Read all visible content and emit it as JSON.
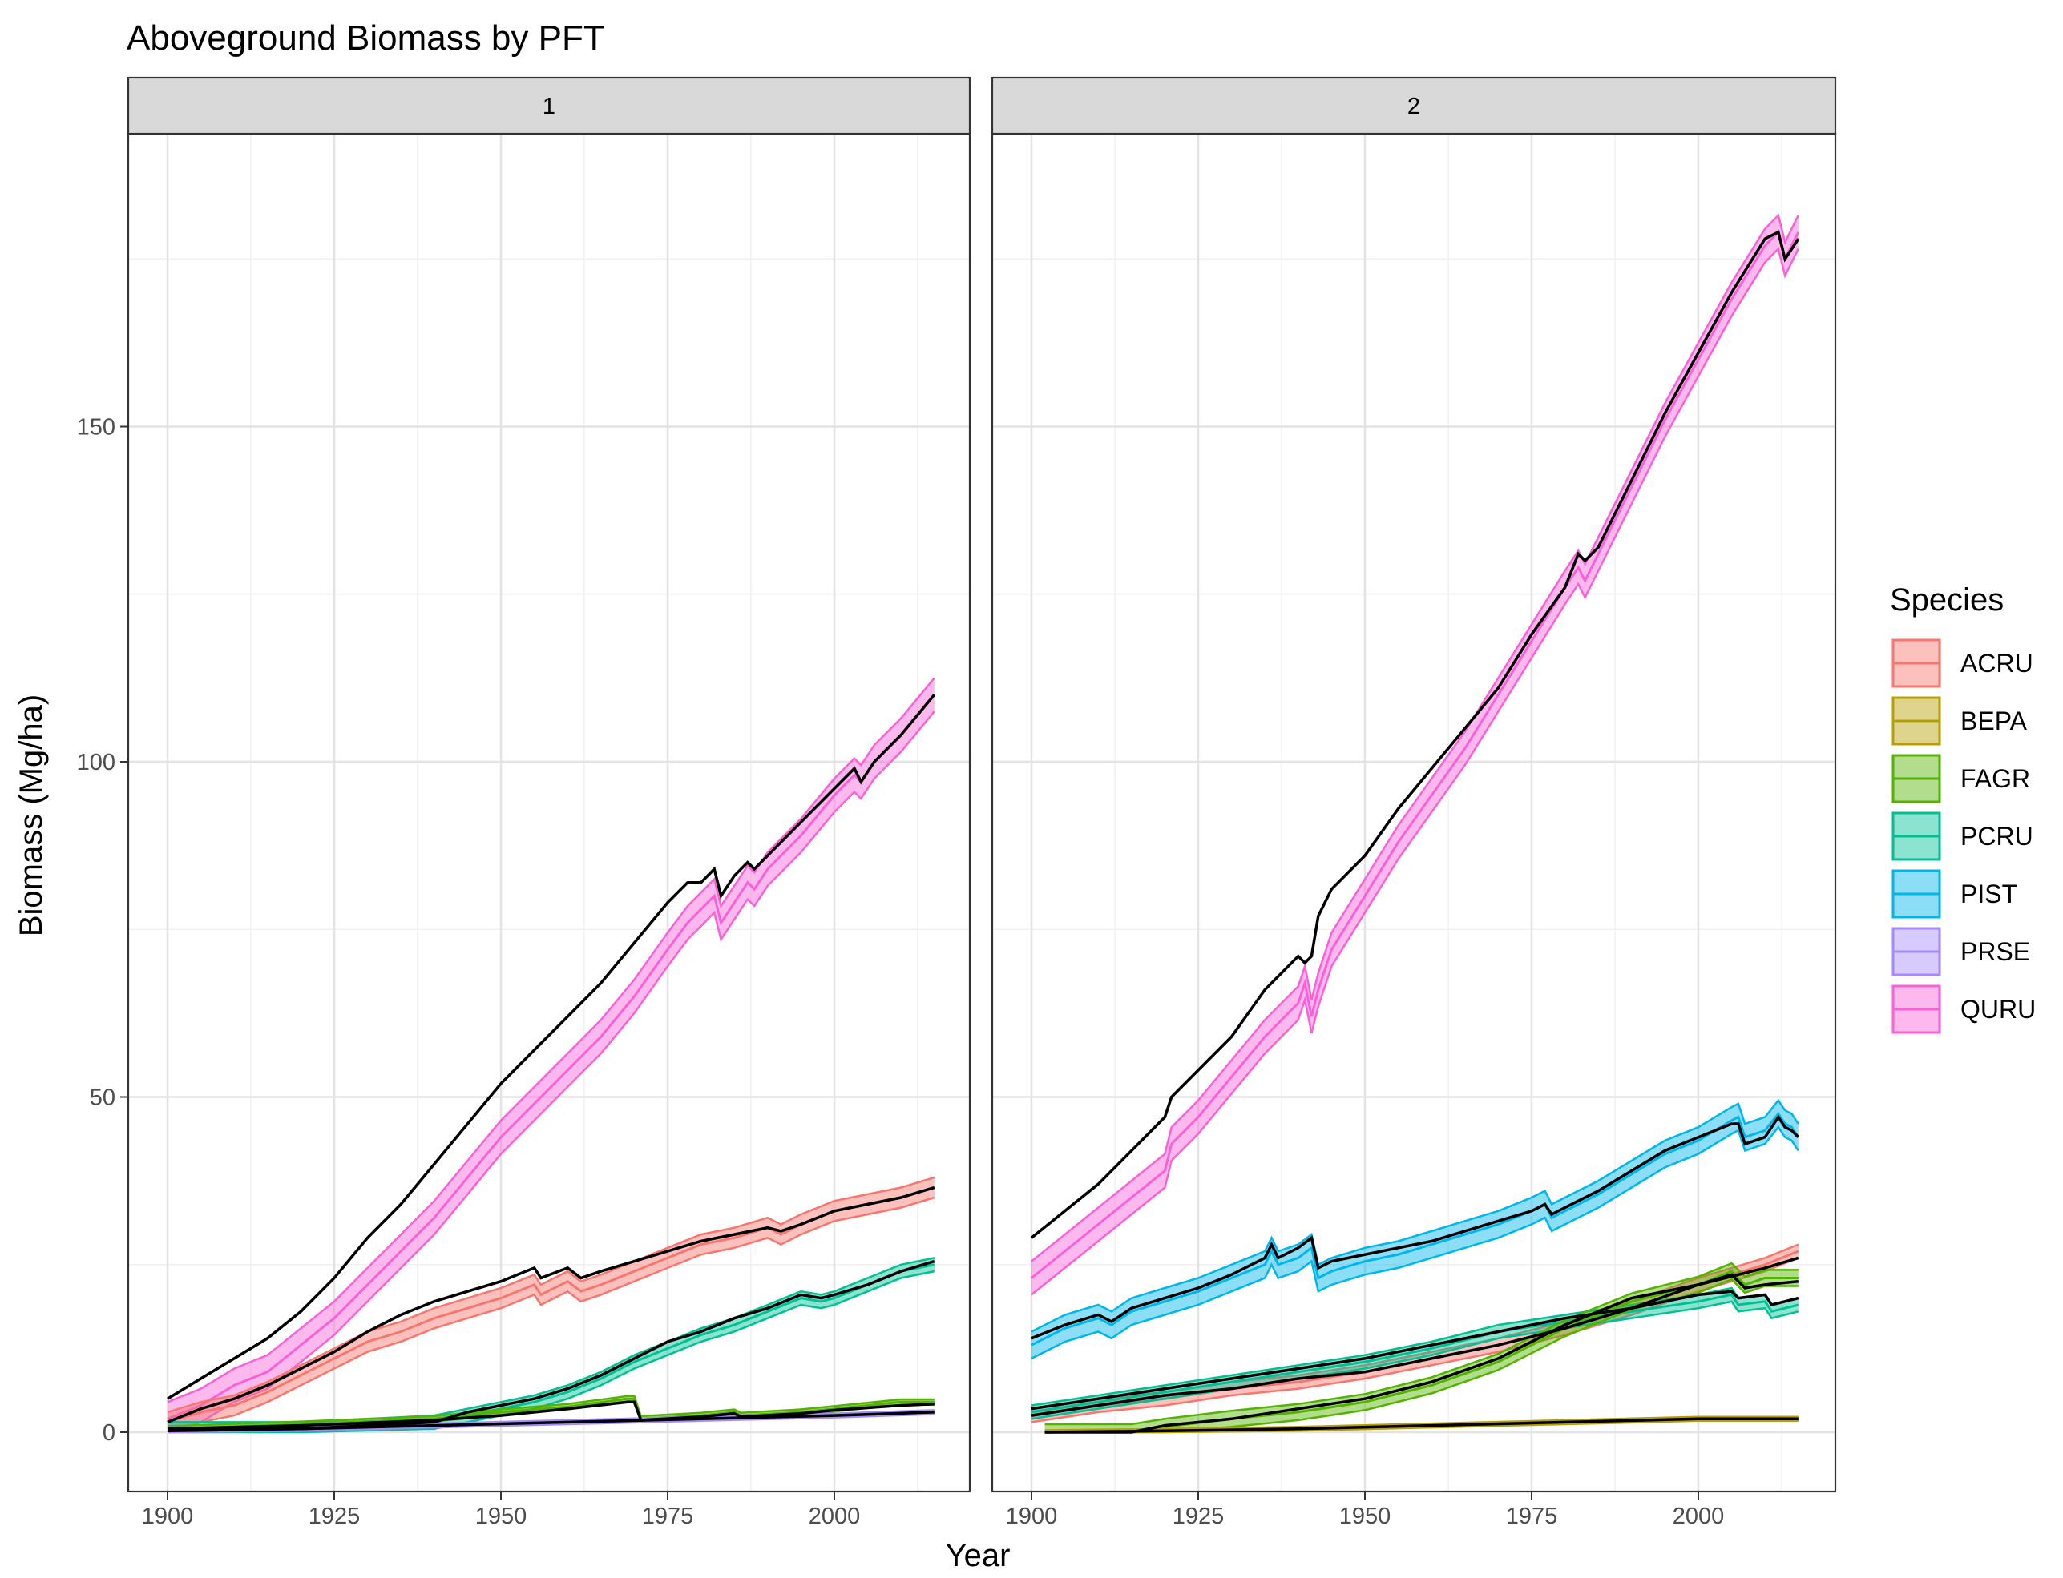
{
  "chart_data": {
    "type": "line",
    "title": "Aboveground Biomass by PFT",
    "xlabel": "Year",
    "ylabel": "Biomass (Mg/ha)",
    "xlim": [
      1900,
      2015
    ],
    "ylim": [
      0,
      190
    ],
    "x_ticks": [
      1900,
      1925,
      1950,
      1975,
      2000
    ],
    "y_ticks": [
      0,
      50,
      100,
      150
    ],
    "grid": true,
    "ribbons": true,
    "legend": {
      "title": "Species",
      "placement": "right",
      "items": [
        {
          "name": "ACRU",
          "color": "#F8766D"
        },
        {
          "name": "BEPA",
          "color": "#B79F00"
        },
        {
          "name": "FAGR",
          "color": "#53B400"
        },
        {
          "name": "PCRU",
          "color": "#00C094"
        },
        {
          "name": "PIST",
          "color": "#00B6EB"
        },
        {
          "name": "PRSE",
          "color": "#A58AFF"
        },
        {
          "name": "QURU",
          "color": "#FB61D7"
        }
      ]
    },
    "panels": [
      {
        "strip": "1",
        "series": [
          {
            "species": "QURU",
            "x": [
              1900,
              1905,
              1910,
              1915,
              1920,
              1925,
              1930,
              1935,
              1940,
              1945,
              1950,
              1955,
              1960,
              1965,
              1970,
              1975,
              1978,
              1980,
              1982,
              1983,
              1985,
              1987,
              1988,
              1990,
              1995,
              2000,
              2003,
              2004,
              2006,
              2010,
              2015
            ],
            "mean": [
              2,
              4,
              7,
              9,
              13,
              17,
              22,
              27,
              32,
              38,
              44,
              49,
              54,
              59,
              65,
              72,
              76,
              78,
              80,
              76,
              79,
              82,
              81,
              84,
              89,
              95,
              98,
              97,
              100,
              104,
              110
            ],
            "band": 2.5,
            "black": [
              5,
              8,
              11,
              14,
              18,
              23,
              29,
              34,
              40,
              46,
              52,
              57,
              62,
              67,
              73,
              79,
              82,
              82,
              84,
              80,
              83,
              85,
              84,
              86,
              91,
              96,
              99,
              97,
              100,
              104,
              110
            ]
          },
          {
            "species": "ACRU",
            "x": [
              1900,
              1905,
              1910,
              1915,
              1920,
              1925,
              1930,
              1935,
              1940,
              1945,
              1950,
              1955,
              1956,
              1960,
              1962,
              1965,
              1970,
              1975,
              1980,
              1985,
              1990,
              1992,
              1995,
              2000,
              2005,
              2010,
              2015
            ],
            "mean": [
              1.5,
              3,
              4,
              6,
              8.5,
              11,
              13.5,
              15,
              17,
              18.5,
              20,
              22,
              20.5,
              22.5,
              21,
              22,
              24,
              26,
              28,
              29,
              30.5,
              29.5,
              31,
              33,
              34,
              35,
              36.5
            ],
            "band": 1.5,
            "black": [
              1.5,
              3.5,
              5,
              7,
              9.5,
              12,
              15,
              17.5,
              19.5,
              21,
              22.5,
              24.5,
              23,
              24.5,
              23,
              24,
              25.5,
              27,
              28.5,
              29.5,
              30.5,
              30,
              31,
              33,
              34,
              35,
              36.5
            ]
          },
          {
            "species": "PCRU",
            "x": [
              1900,
              1920,
              1940,
              1945,
              1950,
              1955,
              1960,
              1965,
              1970,
              1975,
              1980,
              1985,
              1990,
              1995,
              1998,
              2000,
              2005,
              2010,
              2015
            ],
            "mean": [
              0.5,
              0.5,
              1.5,
              2.5,
              3.5,
              4.5,
              6,
              8,
              10.5,
              12.5,
              14.5,
              16,
              18,
              20,
              19.5,
              20,
              22,
              24,
              25
            ],
            "band": 1,
            "black": [
              0.5,
              0.5,
              1.5,
              3,
              4,
              5,
              6.5,
              8.5,
              11,
              13.5,
              15,
              17,
              18.5,
              20.5,
              20,
              20.5,
              22,
              24,
              25.5
            ]
          },
          {
            "species": "FAGR",
            "x": [
              1900,
              1920,
              1940,
              1950,
              1960,
              1969,
              1970,
              1971,
              1980,
              1985,
              1986,
              1995,
              2000,
              2010,
              2015
            ],
            "mean": [
              0.5,
              1.2,
              2,
              3,
              3.8,
              5,
              5,
              2,
              2.5,
              3,
              2.5,
              3,
              3.5,
              4.5,
              4.5
            ],
            "band": 0.4,
            "black": [
              0.5,
              1,
              1.8,
              2.5,
              3.5,
              4.5,
              4.5,
              1.8,
              2.3,
              2.8,
              2.3,
              2.8,
              3.3,
              4,
              4.2
            ]
          },
          {
            "species": "PRSE",
            "x": [
              1900,
              1920,
              1940,
              1960,
              1980,
              2000,
              2015
            ],
            "mean": [
              0.2,
              0.5,
              1,
              1.5,
              2,
              2.5,
              3
            ],
            "band": 0.3,
            "black": [
              0.2,
              0.5,
              1,
              1.5,
              2,
              2.5,
              3
            ]
          }
        ]
      },
      {
        "strip": "2",
        "series": [
          {
            "species": "QURU",
            "x": [
              1900,
              1905,
              1910,
              1915,
              1920,
              1921,
              1925,
              1930,
              1935,
              1940,
              1941,
              1942,
              1943,
              1945,
              1950,
              1955,
              1960,
              1965,
              1970,
              1975,
              1980,
              1982,
              1983,
              1985,
              1990,
              1995,
              2000,
              2005,
              2010,
              2012,
              2013,
              2015
            ],
            "mean": [
              23,
              27,
              31,
              35,
              39,
              43,
              47,
              53,
              59,
              64,
              67,
              62,
              66,
              72,
              80,
              88,
              95,
              102,
              110,
              118,
              126,
              129,
              127,
              131,
              141,
              151,
              160,
              169,
              177,
              179,
              175,
              179
            ],
            "band": 2.5,
            "black": [
              29,
              33,
              37,
              42,
              47,
              50,
              54,
              59,
              66,
              71,
              70,
              71,
              77,
              81,
              86,
              93,
              99,
              105,
              111,
              119,
              126,
              131,
              130,
              132,
              142,
              152,
              161,
              170,
              178,
              179,
              175,
              178
            ]
          },
          {
            "species": "PIST",
            "x": [
              1900,
              1905,
              1910,
              1912,
              1915,
              1920,
              1925,
              1930,
              1935,
              1936,
              1937,
              1940,
              1942,
              1943,
              1945,
              1950,
              1955,
              1960,
              1965,
              1970,
              1975,
              1977,
              1978,
              1980,
              1985,
              1990,
              1995,
              2000,
              2005,
              2006,
              2007,
              2010,
              2012,
              2013,
              2014,
              2015
            ],
            "mean": [
              13,
              15.5,
              17,
              16,
              18,
              19.5,
              21,
              23,
              25,
              27,
              25,
              26,
              27.5,
              23,
              24,
              25.5,
              26.5,
              28,
              29.5,
              31,
              33,
              34,
              32,
              33,
              35.5,
              38.5,
              41.5,
              43.5,
              46.5,
              47,
              44,
              45,
              47.5,
              46,
              45.5,
              44
            ],
            "band": 2,
            "black": [
              14,
              16,
              17.5,
              16.5,
              18.5,
              20,
              21.5,
              23.5,
              26,
              28,
              26,
              27.5,
              29,
              24.5,
              25.5,
              26.5,
              27.5,
              28.5,
              30,
              31.5,
              33,
              34,
              32.5,
              33.5,
              36,
              39,
              42,
              44,
              46,
              46,
              43,
              44,
              47,
              45.5,
              45,
              44
            ]
          },
          {
            "species": "ACRU",
            "x": [
              1900,
              1910,
              1920,
              1930,
              1940,
              1950,
              1960,
              1970,
              1980,
              1990,
              2000,
              2010,
              2015
            ],
            "mean": [
              2.5,
              4,
              5,
              6.5,
              7.5,
              9,
              11,
              13,
              15.5,
              18.5,
              22,
              25,
              27
            ],
            "band": 1,
            "black": [
              2.5,
              4,
              5.5,
              6.5,
              8,
              9,
              11,
              13,
              15.5,
              18.5,
              22,
              24.5,
              26
            ]
          },
          {
            "species": "PCRU",
            "x": [
              1900,
              1910,
              1920,
              1930,
              1940,
              1950,
              1960,
              1970,
              1980,
              1990,
              2000,
              2005,
              2006,
              2010,
              2011,
              2015
            ],
            "mean": [
              3,
              4.5,
              6,
              7.5,
              9,
              10.5,
              12.5,
              15,
              16.5,
              18,
              19.5,
              20.5,
              19,
              19.5,
              18,
              19
            ],
            "band": 1,
            "black": [
              3.5,
              5,
              6.5,
              8,
              9.5,
              11,
              13,
              15,
              17,
              18.5,
              20.5,
              21,
              20,
              20.5,
              19,
              20
            ]
          },
          {
            "species": "FAGR",
            "x": [
              1902,
              1915,
              1920,
              1930,
              1940,
              1950,
              1960,
              1970,
              1980,
              1990,
              2000,
              2005,
              2007,
              2010,
              2015
            ],
            "mean": [
              0,
              0,
              0.8,
              2,
              3,
              4.5,
              7,
              10.5,
              15.5,
              19.5,
              22,
              24,
              22,
              23,
              23
            ],
            "band": 1.2,
            "black": [
              0,
              0,
              1,
              2,
              3.5,
              5,
              7.5,
              11,
              16,
              20,
              22,
              23.5,
              21.5,
              22,
              22.5
            ]
          },
          {
            "species": "BEPA",
            "x": [
              1902,
              1920,
              1940,
              1960,
              1980,
              2000,
              2015
            ],
            "mean": [
              0,
              0.2,
              0.5,
              1,
              1.5,
              2,
              2
            ],
            "band": 0.3,
            "black": [
              0,
              0.2,
              0.5,
              1,
              1.5,
              2,
              2
            ]
          }
        ]
      }
    ]
  }
}
